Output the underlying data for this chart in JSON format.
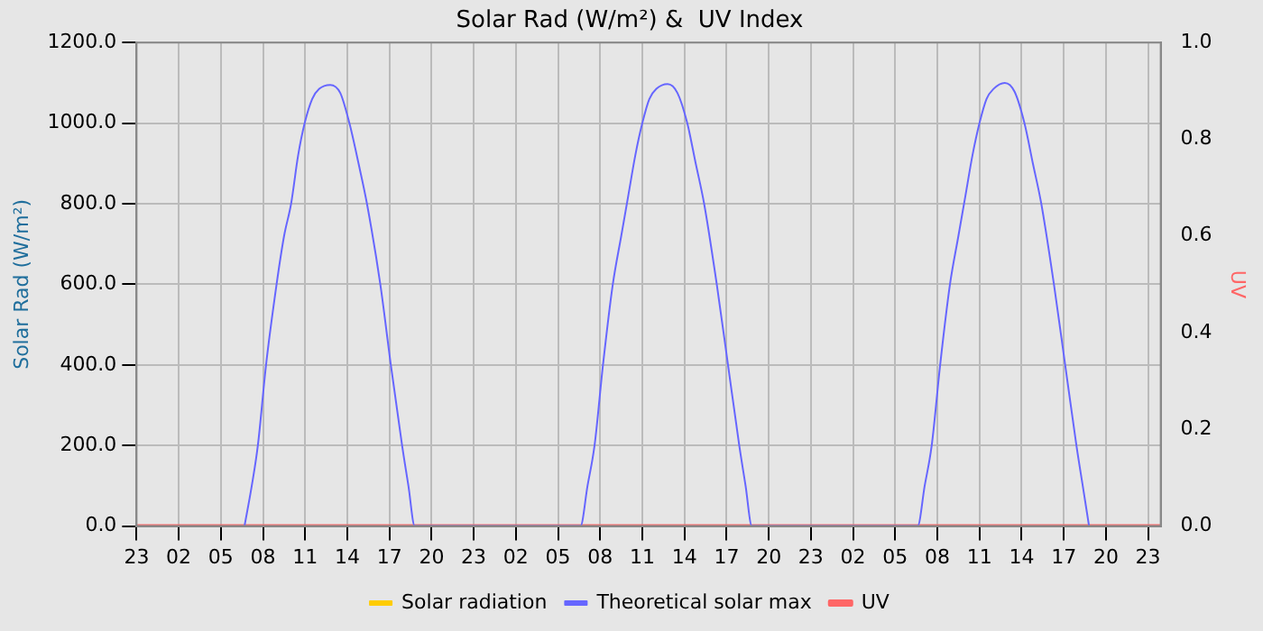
{
  "chart_data": {
    "type": "line",
    "title": "Solar Rad (W/m²) &  UV Index",
    "ylabel": "Solar Rad (W/m²)",
    "y2label": "UV",
    "xlim": [
      "--01-01T23:00",
      "--01-04T23:54"
    ],
    "xticks": [
      {
        "value": "--01-01T23:00",
        "label": "23"
      },
      {
        "value": "--01-02T02:00",
        "label": "02"
      },
      {
        "value": "--01-02T05:00",
        "label": "05"
      },
      {
        "value": "--01-02T08:00",
        "label": "08"
      },
      {
        "value": "--01-02T11:00",
        "label": "11"
      },
      {
        "value": "--01-02T14:00",
        "label": "14"
      },
      {
        "value": "--01-02T17:00",
        "label": "17"
      },
      {
        "value": "--01-02T20:00",
        "label": "20"
      },
      {
        "value": "--01-02T23:00",
        "label": "23"
      },
      {
        "value": "--01-03T02:00",
        "label": "02"
      },
      {
        "value": "--01-03T05:00",
        "label": "05"
      },
      {
        "value": "--01-03T08:00",
        "label": "08"
      },
      {
        "value": "--01-03T11:00",
        "label": "11"
      },
      {
        "value": "--01-03T14:00",
        "label": "14"
      },
      {
        "value": "--01-03T17:00",
        "label": "17"
      },
      {
        "value": "--01-03T20:00",
        "label": "20"
      },
      {
        "value": "--01-03T23:00",
        "label": "23"
      },
      {
        "value": "--01-04T02:00",
        "label": "02"
      },
      {
        "value": "--01-04T05:00",
        "label": "05"
      },
      {
        "value": "--01-04T08:00",
        "label": "08"
      },
      {
        "value": "--01-04T11:00",
        "label": "11"
      },
      {
        "value": "--01-04T14:00",
        "label": "14"
      },
      {
        "value": "--01-04T17:00",
        "label": "17"
      },
      {
        "value": "--01-04T20:00",
        "label": "20"
      },
      {
        "value": "--01-04T23:00",
        "label": "23"
      }
    ],
    "ylim": [
      0,
      1200
    ],
    "yticks": [
      {
        "value": 0,
        "label": "0.0"
      },
      {
        "value": 200,
        "label": "200.0"
      },
      {
        "value": 400,
        "label": "400.0"
      },
      {
        "value": 600,
        "label": "600.0"
      },
      {
        "value": 800,
        "label": "800.0"
      },
      {
        "value": 1000,
        "label": "1000.0"
      },
      {
        "value": 1200,
        "label": "1200.0"
      }
    ],
    "y2lim": [
      0,
      1
    ],
    "y2ticks": [
      {
        "value": 0,
        "label": "0.0"
      },
      {
        "value": 0.2,
        "label": "0.2"
      },
      {
        "value": 0.4,
        "label": "0.4"
      },
      {
        "value": 0.6,
        "label": "0.6"
      },
      {
        "value": 0.8,
        "label": "0.8"
      },
      {
        "value": 1,
        "label": "1.0"
      }
    ],
    "grid": true,
    "legend": "bottom",
    "marker": "none",
    "line_style": "solid",
    "series": [
      {
        "name": "Solar radiation",
        "color": "#ffcc00"
      },
      {
        "name": "Theoretical solar max",
        "color": "#6666ff",
        "x": [
          "--01-02T06:41",
          "--01-02T07:12",
          "--01-02T07:38",
          "--01-02T08:13",
          "--01-02T08:58",
          "--01-02T09:30",
          "--01-02T10:00",
          "--01-02T10:30",
          "--01-02T10:58",
          "--01-02T11:30",
          "--01-02T12:00",
          "--01-02T12:47",
          "--01-02T13:30",
          "--01-02T14:09",
          "--01-02T14:48",
          "--01-02T15:24",
          "--01-02T16:21",
          "--01-02T17:06",
          "--01-02T17:54",
          "--01-02T18:21",
          "--01-02T18:48",
          "--01-03T06:36",
          "--01-03T07:06",
          "--01-03T07:36",
          "--01-03T08:12",
          "--01-03T08:54",
          "--01-03T09:30",
          "--01-03T10:00",
          "--01-03T10:30",
          "--01-03T11:00",
          "--01-03T11:30",
          "--01-03T12:00",
          "--01-03T12:48",
          "--01-03T13:30",
          "--01-03T14:12",
          "--01-03T14:48",
          "--01-03T15:24",
          "--01-03T16:18",
          "--01-03T17:06",
          "--01-03T17:54",
          "--01-03T18:21",
          "--01-03T18:48",
          "--01-04T06:36",
          "--01-04T07:06",
          "--01-04T07:36",
          "--01-04T08:12",
          "--01-04T08:54",
          "--01-04T09:30",
          "--01-04T10:00",
          "--01-04T10:30",
          "--01-04T11:00",
          "--01-04T11:30",
          "--01-04T12:00",
          "--01-04T12:48",
          "--01-04T13:30",
          "--01-04T14:12",
          "--01-04T14:48",
          "--01-04T15:24",
          "--01-04T16:18",
          "--01-04T17:06",
          "--01-04T17:54",
          "--01-04T18:21",
          "--01-04T18:48"
        ],
        "values": [
          0,
          100,
          200,
          400,
          600,
          720,
          800,
          920,
          1000,
          1060,
          1085,
          1095,
          1075,
          1000,
          900,
          800,
          600,
          400,
          200,
          100,
          0,
          0,
          100,
          200,
          400,
          600,
          720,
          820,
          920,
          1000,
          1060,
          1085,
          1097,
          1075,
          1000,
          900,
          800,
          600,
          400,
          200,
          100,
          0,
          0,
          100,
          200,
          400,
          600,
          720,
          820,
          920,
          1000,
          1060,
          1085,
          1100,
          1078,
          1000,
          900,
          800,
          600,
          400,
          200,
          100,
          0
        ]
      },
      {
        "name": "UV",
        "color": "#ff6666",
        "axis": "y2",
        "x": [
          "--01-01T23:00",
          "--01-04T23:54"
        ],
        "values": [
          0,
          0
        ]
      }
    ]
  }
}
